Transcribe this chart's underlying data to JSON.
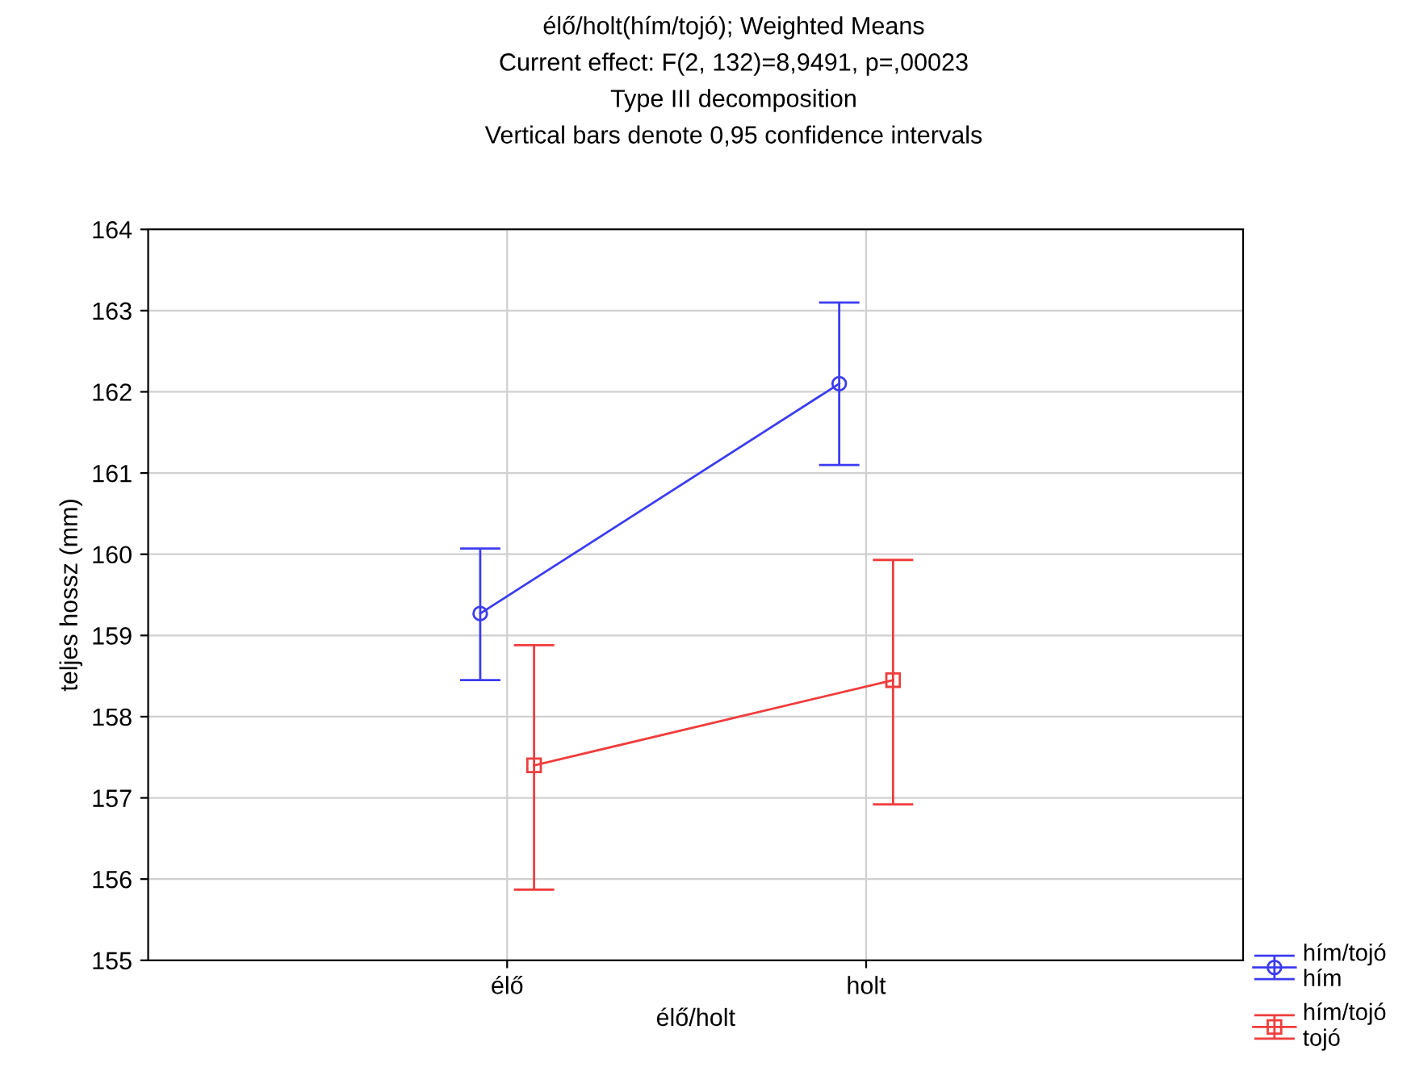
{
  "chart_data": {
    "type": "line",
    "title": "élő/holt(hím/tojó); Weighted Means\nCurrent effect: F(2, 132)=8,9491, p=,00023\nType III decomposition\nVertical bars denote 0,95 confidence intervals",
    "xlabel": "élő/holt",
    "ylabel": "teljes hossz (mm)",
    "categories": [
      "élő",
      "holt"
    ],
    "series": [
      {
        "name": "hím/tojó\nhím",
        "color": "#3c3cf0",
        "marker": "circle",
        "values": [
          159.27,
          162.1
        ],
        "errors": [
          [
            158.45,
            160.07
          ],
          [
            161.1,
            163.1
          ]
        ]
      },
      {
        "name": "hím/tojó\ntojó",
        "color": "#f03c3c",
        "marker": "square",
        "values": [
          157.4,
          158.45
        ],
        "errors": [
          [
            155.87,
            158.88
          ],
          [
            156.92,
            159.93
          ]
        ]
      }
    ],
    "ylim": [
      155,
      164
    ],
    "yticks": [
      155,
      156,
      157,
      158,
      159,
      160,
      161,
      162,
      163,
      164
    ],
    "grid": true,
    "legend": "bottom right"
  }
}
